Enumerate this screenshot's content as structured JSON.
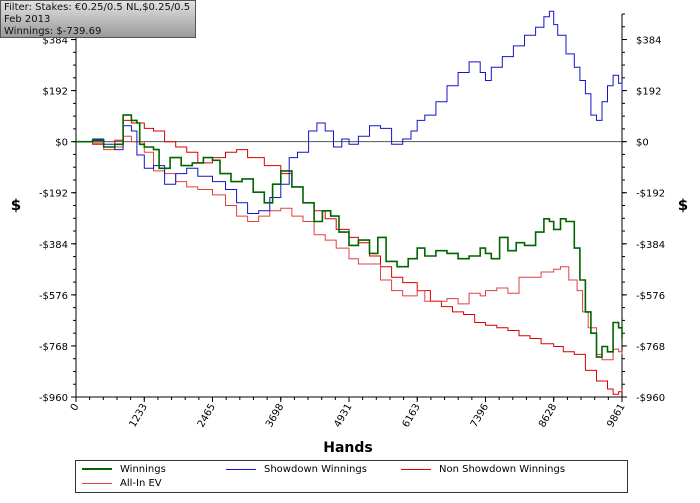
{
  "filter": {
    "line1": "Filter: Stakes: €0.25/0.5 NL,$0.25/0.5 NL",
    "line2": "Feb 2013",
    "line3": "Winnings: $-739.69"
  },
  "chart_data": {
    "type": "line",
    "title": "",
    "xlabel": "Hands",
    "ylabel": "$",
    "xlim": [
      0,
      9861
    ],
    "ylim": [
      -960,
      480
    ],
    "x_ticks": [
      "0",
      "1233",
      "2465",
      "3698",
      "4931",
      "6163",
      "7396",
      "8628",
      "9861"
    ],
    "y_ticks": [
      {
        "value": 384,
        "label": "$384"
      },
      {
        "value": 192,
        "label": "$192"
      },
      {
        "value": 0,
        "label": "$0"
      },
      {
        "value": -192,
        "label": "-$192"
      },
      {
        "value": -384,
        "label": "-$384"
      },
      {
        "value": -576,
        "label": "-$576"
      },
      {
        "value": -768,
        "label": "-$768"
      },
      {
        "value": -960,
        "label": "-$960"
      }
    ],
    "grid": false,
    "legend_position": "bottom",
    "series": [
      {
        "name": "Winnings",
        "color": "#006400",
        "points": [
          [
            0,
            0
          ],
          [
            300,
            5
          ],
          [
            500,
            -20
          ],
          [
            700,
            -10
          ],
          [
            850,
            100
          ],
          [
            1000,
            80
          ],
          [
            1100,
            70
          ],
          [
            1150,
            -10
          ],
          [
            1233,
            -20
          ],
          [
            1400,
            -30
          ],
          [
            1500,
            -100
          ],
          [
            1700,
            -60
          ],
          [
            1900,
            -90
          ],
          [
            2100,
            -80
          ],
          [
            2300,
            -60
          ],
          [
            2465,
            -70
          ],
          [
            2600,
            -120
          ],
          [
            2800,
            -150
          ],
          [
            3000,
            -140
          ],
          [
            3200,
            -190
          ],
          [
            3400,
            -230
          ],
          [
            3550,
            -160
          ],
          [
            3698,
            -110
          ],
          [
            3900,
            -170
          ],
          [
            4100,
            -230
          ],
          [
            4300,
            -300
          ],
          [
            4450,
            -260
          ],
          [
            4600,
            -280
          ],
          [
            4750,
            -340
          ],
          [
            4931,
            -390
          ],
          [
            5100,
            -370
          ],
          [
            5300,
            -420
          ],
          [
            5450,
            -360
          ],
          [
            5600,
            -450
          ],
          [
            5800,
            -470
          ],
          [
            6000,
            -440
          ],
          [
            6163,
            -400
          ],
          [
            6300,
            -430
          ],
          [
            6500,
            -410
          ],
          [
            6700,
            -420
          ],
          [
            6900,
            -440
          ],
          [
            7100,
            -430
          ],
          [
            7300,
            -400
          ],
          [
            7396,
            -420
          ],
          [
            7500,
            -440
          ],
          [
            7650,
            -360
          ],
          [
            7800,
            -410
          ],
          [
            7950,
            -380
          ],
          [
            8100,
            -390
          ],
          [
            8300,
            -340
          ],
          [
            8450,
            -290
          ],
          [
            8550,
            -300
          ],
          [
            8628,
            -330
          ],
          [
            8750,
            -290
          ],
          [
            8850,
            -300
          ],
          [
            9000,
            -400
          ],
          [
            9100,
            -520
          ],
          [
            9200,
            -640
          ],
          [
            9300,
            -720
          ],
          [
            9400,
            -810
          ],
          [
            9500,
            -770
          ],
          [
            9600,
            -790
          ],
          [
            9700,
            -680
          ],
          [
            9800,
            -700
          ],
          [
            9861,
            -740
          ]
        ]
      },
      {
        "name": "Showdown Winnings",
        "color": "#1414c8",
        "points": [
          [
            0,
            0
          ],
          [
            300,
            10
          ],
          [
            500,
            -10
          ],
          [
            700,
            -30
          ],
          [
            850,
            60
          ],
          [
            1000,
            40
          ],
          [
            1100,
            -50
          ],
          [
            1233,
            -100
          ],
          [
            1400,
            -90
          ],
          [
            1600,
            -160
          ],
          [
            1800,
            -120
          ],
          [
            2000,
            -100
          ],
          [
            2200,
            -130
          ],
          [
            2465,
            -150
          ],
          [
            2700,
            -180
          ],
          [
            2900,
            -230
          ],
          [
            3100,
            -270
          ],
          [
            3300,
            -260
          ],
          [
            3500,
            -210
          ],
          [
            3698,
            -160
          ],
          [
            3850,
            -60
          ],
          [
            4000,
            -40
          ],
          [
            4200,
            40
          ],
          [
            4350,
            70
          ],
          [
            4500,
            40
          ],
          [
            4650,
            -20
          ],
          [
            4800,
            10
          ],
          [
            4931,
            -10
          ],
          [
            5100,
            20
          ],
          [
            5300,
            60
          ],
          [
            5500,
            50
          ],
          [
            5700,
            -10
          ],
          [
            5900,
            10
          ],
          [
            6050,
            40
          ],
          [
            6163,
            80
          ],
          [
            6300,
            100
          ],
          [
            6500,
            150
          ],
          [
            6700,
            210
          ],
          [
            6900,
            260
          ],
          [
            7100,
            300
          ],
          [
            7300,
            260
          ],
          [
            7396,
            230
          ],
          [
            7500,
            280
          ],
          [
            7700,
            320
          ],
          [
            7900,
            360
          ],
          [
            8100,
            400
          ],
          [
            8300,
            430
          ],
          [
            8450,
            470
          ],
          [
            8550,
            490
          ],
          [
            8628,
            440
          ],
          [
            8700,
            400
          ],
          [
            8850,
            330
          ],
          [
            9000,
            280
          ],
          [
            9100,
            230
          ],
          [
            9200,
            180
          ],
          [
            9300,
            100
          ],
          [
            9400,
            80
          ],
          [
            9500,
            150
          ],
          [
            9600,
            210
          ],
          [
            9700,
            250
          ],
          [
            9800,
            220
          ],
          [
            9861,
            190
          ]
        ]
      },
      {
        "name": "Non Showdown Winnings",
        "color": "#dc0000",
        "points": [
          [
            0,
            0
          ],
          [
            300,
            -10
          ],
          [
            500,
            -20
          ],
          [
            700,
            5
          ],
          [
            850,
            80
          ],
          [
            1000,
            70
          ],
          [
            1233,
            50
          ],
          [
            1400,
            40
          ],
          [
            1600,
            0
          ],
          [
            1800,
            -20
          ],
          [
            2000,
            -40
          ],
          [
            2200,
            -80
          ],
          [
            2465,
            -60
          ],
          [
            2700,
            -40
          ],
          [
            2900,
            -30
          ],
          [
            3100,
            -60
          ],
          [
            3400,
            -90
          ],
          [
            3698,
            -120
          ],
          [
            3900,
            -170
          ],
          [
            4100,
            -230
          ],
          [
            4300,
            -260
          ],
          [
            4500,
            -290
          ],
          [
            4700,
            -330
          ],
          [
            4931,
            -360
          ],
          [
            5100,
            -380
          ],
          [
            5300,
            -430
          ],
          [
            5500,
            -470
          ],
          [
            5700,
            -510
          ],
          [
            5900,
            -530
          ],
          [
            6163,
            -560
          ],
          [
            6400,
            -600
          ],
          [
            6600,
            -620
          ],
          [
            6800,
            -640
          ],
          [
            7000,
            -650
          ],
          [
            7200,
            -680
          ],
          [
            7396,
            -690
          ],
          [
            7600,
            -700
          ],
          [
            7800,
            -710
          ],
          [
            8000,
            -730
          ],
          [
            8200,
            -740
          ],
          [
            8400,
            -760
          ],
          [
            8628,
            -770
          ],
          [
            8800,
            -790
          ],
          [
            9000,
            -800
          ],
          [
            9200,
            -860
          ],
          [
            9400,
            -900
          ],
          [
            9600,
            -930
          ],
          [
            9700,
            -950
          ],
          [
            9800,
            -940
          ],
          [
            9861,
            -930
          ]
        ]
      },
      {
        "name": "All-In EV",
        "color": "#e04040",
        "points": [
          [
            0,
            0
          ],
          [
            300,
            -5
          ],
          [
            500,
            -30
          ],
          [
            700,
            -20
          ],
          [
            850,
            20
          ],
          [
            1000,
            0
          ],
          [
            1233,
            -40
          ],
          [
            1400,
            -110
          ],
          [
            1600,
            -120
          ],
          [
            1800,
            -150
          ],
          [
            2000,
            -170
          ],
          [
            2200,
            -180
          ],
          [
            2465,
            -200
          ],
          [
            2700,
            -240
          ],
          [
            2900,
            -280
          ],
          [
            3100,
            -300
          ],
          [
            3300,
            -280
          ],
          [
            3500,
            -260
          ],
          [
            3698,
            -250
          ],
          [
            3900,
            -280
          ],
          [
            4100,
            -300
          ],
          [
            4300,
            -350
          ],
          [
            4500,
            -370
          ],
          [
            4700,
            -400
          ],
          [
            4931,
            -440
          ],
          [
            5100,
            -460
          ],
          [
            5300,
            -460
          ],
          [
            5500,
            -520
          ],
          [
            5700,
            -560
          ],
          [
            5900,
            -580
          ],
          [
            6163,
            -560
          ],
          [
            6300,
            -600
          ],
          [
            6500,
            -600
          ],
          [
            6700,
            -590
          ],
          [
            6900,
            -610
          ],
          [
            7100,
            -570
          ],
          [
            7300,
            -580
          ],
          [
            7396,
            -560
          ],
          [
            7600,
            -550
          ],
          [
            7800,
            -570
          ],
          [
            8000,
            -510
          ],
          [
            8200,
            -510
          ],
          [
            8400,
            -490
          ],
          [
            8628,
            -480
          ],
          [
            8750,
            -470
          ],
          [
            8900,
            -520
          ],
          [
            9050,
            -560
          ],
          [
            9150,
            -640
          ],
          [
            9250,
            -700
          ],
          [
            9400,
            -800
          ],
          [
            9500,
            -820
          ],
          [
            9600,
            -820
          ],
          [
            9700,
            -780
          ],
          [
            9800,
            -790
          ],
          [
            9861,
            -800
          ]
        ]
      }
    ]
  }
}
